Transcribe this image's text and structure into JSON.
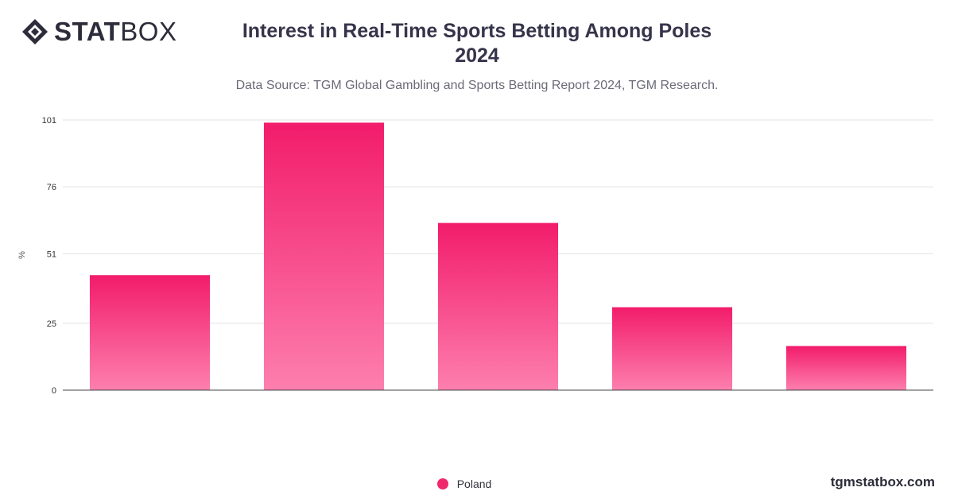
{
  "brand": {
    "logo_strong": "STAT",
    "logo_light": "BOX",
    "logo_icon": "statbox-diamond-icon",
    "footer": "tgmstatbox.com"
  },
  "chart_data": {
    "type": "bar",
    "title_line1": "Interest in Real-Time Sports Betting Among Poles",
    "title_line2": "2024",
    "subtitle": "Data Source: TGM Global Gambling and Sports Betting Report 2024, TGM Research.",
    "ylabel": "%",
    "xlabel": "",
    "ylim": [
      0,
      101
    ],
    "yticks": [
      0,
      25,
      51,
      76,
      101
    ],
    "categories": [
      "",
      "",
      "",
      "",
      ""
    ],
    "series": [
      {
        "name": "Poland",
        "values": [
          43,
          100,
          62.5,
          31,
          16.5
        ]
      }
    ],
    "grid": true,
    "legend_position": "bottom-center",
    "colors": {
      "bar_top": "#f21c6b",
      "bar_bottom": "#fd7fae",
      "gridline": "#e2e2e6",
      "axis": "#444444"
    }
  }
}
